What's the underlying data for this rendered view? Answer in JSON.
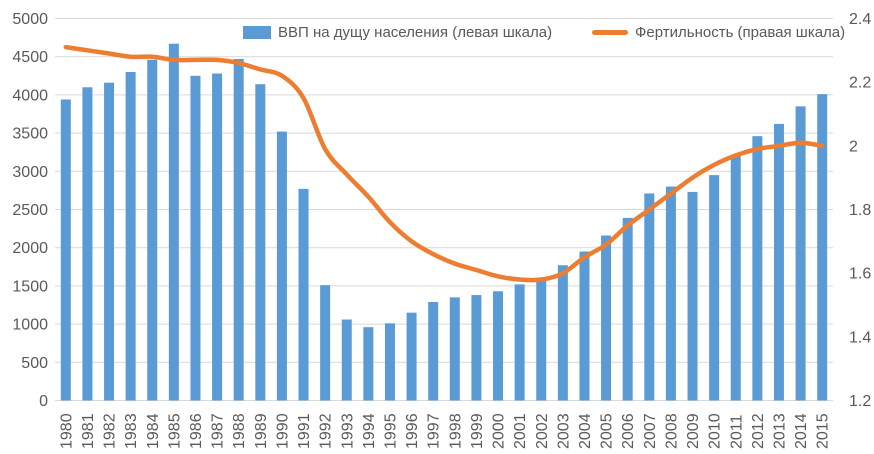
{
  "legend": {
    "gdp_label": "ВВП на дущу населения (левая шкала)",
    "fertility_label": "Фертильность (правая шкала)"
  },
  "chart_data": {
    "type": "bar+line",
    "title": "",
    "categories": [
      "1980",
      "1981",
      "1982",
      "1983",
      "1984",
      "1985",
      "1986",
      "1987",
      "1988",
      "1989",
      "1990",
      "1991",
      "1992",
      "1993",
      "1994",
      "1995",
      "1996",
      "1997",
      "1998",
      "1999",
      "2000",
      "2001",
      "2002",
      "2003",
      "2004",
      "2005",
      "2006",
      "2007",
      "2008",
      "2009",
      "2010",
      "2011",
      "2012",
      "2013",
      "2014",
      "2015"
    ],
    "series": [
      {
        "name": "ВВП на дущу населения (левая шкала)",
        "type": "bar",
        "axis": "left",
        "color": "#5B9BD5",
        "values": [
          3940,
          4100,
          4160,
          4300,
          4460,
          4670,
          4250,
          4280,
          4470,
          4140,
          3520,
          2770,
          1510,
          1060,
          960,
          1010,
          1150,
          1290,
          1350,
          1380,
          1430,
          1520,
          1600,
          1770,
          1950,
          2160,
          2390,
          2710,
          2800,
          2730,
          2950,
          3200,
          3460,
          3620,
          3850,
          4010
        ]
      },
      {
        "name": "Фертильность (правая шкала)",
        "type": "line",
        "axis": "right",
        "color": "#ED7D31",
        "values": [
          2.31,
          2.3,
          2.29,
          2.28,
          2.28,
          2.27,
          2.27,
          2.27,
          2.26,
          2.24,
          2.22,
          2.15,
          1.99,
          1.91,
          1.84,
          1.76,
          1.7,
          1.66,
          1.63,
          1.61,
          1.59,
          1.58,
          1.58,
          1.6,
          1.65,
          1.69,
          1.75,
          1.8,
          1.85,
          1.9,
          1.94,
          1.97,
          1.99,
          2.0,
          2.01,
          2.0
        ]
      }
    ],
    "left_axis": {
      "min": 0,
      "max": 5000,
      "tick_step": 500,
      "ticks": [
        "5000",
        "4500",
        "4000",
        "3500",
        "3000",
        "2500",
        "2000",
        "1500",
        "1000",
        "500",
        "0"
      ]
    },
    "right_axis": {
      "min": 1.2,
      "max": 2.4,
      "tick_step": 0.2,
      "ticks": [
        "2.4",
        "2.2",
        "2",
        "1.8",
        "1.6",
        "1.4",
        "1.2"
      ]
    },
    "grid": true,
    "legend_position": "top",
    "colors": {
      "gridline": "#D9D9D9",
      "tick_text": "#595959",
      "background": "#FFFFFF"
    }
  }
}
